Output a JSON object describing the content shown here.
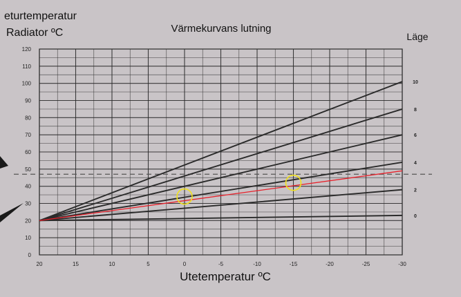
{
  "chart_data": {
    "type": "line",
    "title": "Värmekurvans lutning",
    "ylabel_line1": "eturtemperatur",
    "ylabel_line2": "Radiator ºC",
    "xlabel": "Utetemperatur ºC",
    "right_label": "Läge",
    "x_ticks": [
      20,
      15,
      10,
      5,
      0,
      -5,
      -10,
      -15,
      -20,
      -25,
      -30
    ],
    "y_ticks": [
      0,
      10,
      20,
      30,
      40,
      50,
      60,
      70,
      80,
      90,
      100,
      110,
      120
    ],
    "xlim": [
      20,
      -30
    ],
    "ylim": [
      0,
      120
    ],
    "grid": true,
    "series": [
      {
        "name": "10",
        "x": [
          20,
          -30
        ],
        "y": [
          20,
          101
        ]
      },
      {
        "name": "8",
        "x": [
          20,
          -30
        ],
        "y": [
          20,
          85
        ]
      },
      {
        "name": "6",
        "x": [
          20,
          -30
        ],
        "y": [
          20,
          70
        ]
      },
      {
        "name": "4",
        "x": [
          20,
          -30
        ],
        "y": [
          20,
          54
        ]
      },
      {
        "name": "2",
        "x": [
          20,
          -30
        ],
        "y": [
          20,
          38
        ]
      },
      {
        "name": "0",
        "x": [
          20,
          -30
        ],
        "y": [
          20,
          23
        ]
      }
    ],
    "red_line": {
      "x": [
        20,
        -30
      ],
      "y": [
        20,
        49
      ],
      "color": "#e8202a"
    },
    "dashed_line": {
      "y": 47
    },
    "circle_markers": [
      {
        "x": 0,
        "y": 34
      },
      {
        "x": -15,
        "y": 42
      }
    ],
    "colors": {
      "paper": "#c9c4c7",
      "grid": "#2b2b2b",
      "curve": "#2a2a2a",
      "marker": "#f2e21c"
    }
  }
}
